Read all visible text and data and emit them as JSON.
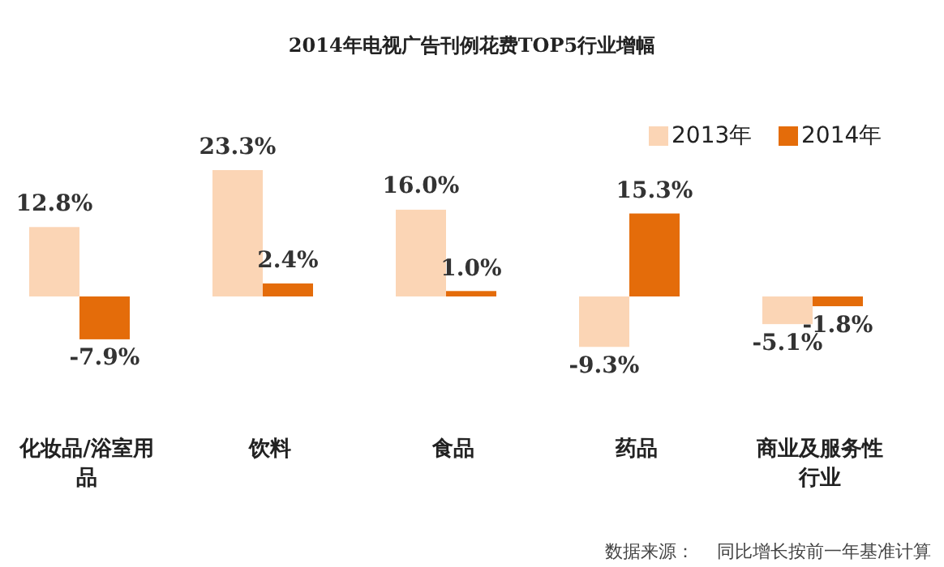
{
  "chart_data": {
    "type": "bar",
    "title": "2014年电视广告刊例花费TOP5行业增幅",
    "categories": [
      "化妆品/浴室用品",
      "饮料",
      "食品",
      "药品",
      "商业及服务性行业"
    ],
    "series": [
      {
        "name": "2013年",
        "color": "#fbd5b5",
        "values": [
          12.8,
          23.3,
          16.0,
          -9.3,
          -5.1
        ],
        "value_labels": [
          "12.8%",
          "23.3%",
          "16.0%",
          "-9.3%",
          "-5.1%"
        ]
      },
      {
        "name": "2014年",
        "color": "#e46c0a",
        "values": [
          -7.9,
          2.4,
          1.0,
          15.3,
          -1.8
        ],
        "value_labels": [
          "-7.9%",
          "2.4%",
          "1.0%",
          "15.3%",
          "-1.8%"
        ]
      }
    ],
    "legend": "top right",
    "annotations": [
      "数据来源：",
      "同比增长按前一年基准计算"
    ]
  }
}
